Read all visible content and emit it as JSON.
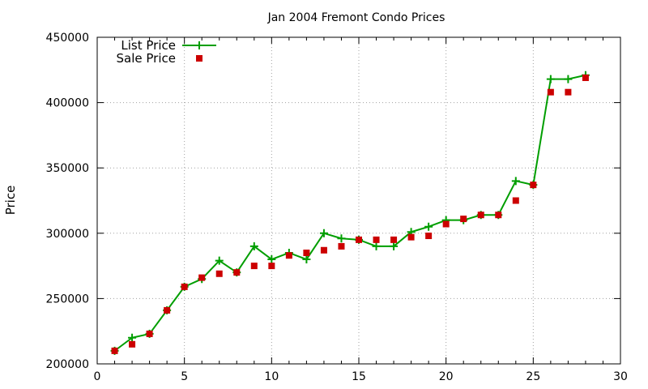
{
  "chart_data": {
    "type": "line",
    "title": "Jan 2004 Fremont Condo Prices",
    "xlabel": "",
    "ylabel": "Price",
    "xlim": [
      0,
      30
    ],
    "ylim": [
      200000,
      450000
    ],
    "xticks": [
      0,
      5,
      10,
      15,
      20,
      25,
      30
    ],
    "yticks": [
      200000,
      250000,
      300000,
      350000,
      400000,
      450000
    ],
    "grid": true,
    "legend_position": "top-left",
    "series": [
      {
        "name": "List Price",
        "style": "line-with-plus-markers",
        "color": "#009e00",
        "x": [
          1,
          2,
          3,
          4,
          5,
          6,
          7,
          8,
          9,
          10,
          11,
          12,
          13,
          14,
          15,
          16,
          17,
          18,
          19,
          20,
          21,
          22,
          23,
          24,
          25,
          26,
          27,
          28
        ],
        "values": [
          210000,
          220000,
          223000,
          241000,
          259000,
          265000,
          279000,
          270000,
          290000,
          280000,
          285000,
          280000,
          300000,
          296000,
          295000,
          290000,
          290000,
          301000,
          305000,
          310000,
          310000,
          314000,
          314000,
          340000,
          337000,
          418000,
          418000,
          421000
        ]
      },
      {
        "name": "Sale Price",
        "style": "square-markers",
        "color": "#cc0000",
        "x": [
          1,
          2,
          3,
          4,
          5,
          6,
          7,
          8,
          9,
          10,
          11,
          12,
          13,
          14,
          15,
          16,
          17,
          18,
          19,
          20,
          21,
          22,
          23,
          24,
          25,
          26,
          27,
          28
        ],
        "values": [
          210000,
          215000,
          223000,
          241000,
          259000,
          266000,
          269000,
          270000,
          275000,
          275000,
          283000,
          285000,
          287000,
          290000,
          295000,
          295000,
          295000,
          297000,
          298000,
          307000,
          311000,
          314000,
          314000,
          325000,
          337000,
          408000,
          408000,
          419000
        ]
      }
    ]
  }
}
